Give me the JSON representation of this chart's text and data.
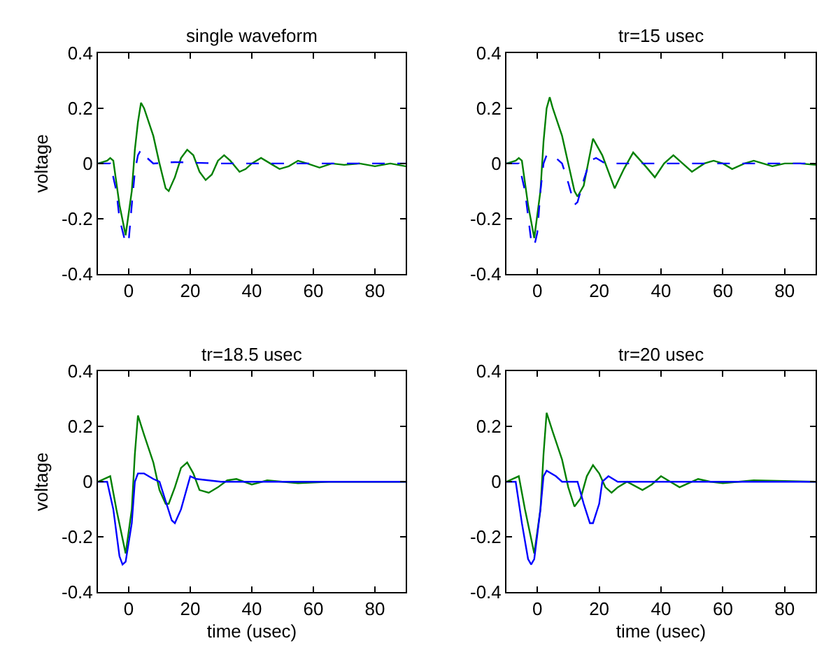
{
  "chart_data": [
    {
      "type": "line",
      "title": "single waveform",
      "ylabel": "voltage",
      "xlim": [
        -10,
        90
      ],
      "xticks": [
        0,
        20,
        40,
        60,
        80
      ],
      "ylim": [
        -0.4,
        0.4
      ],
      "yticks": [
        -0.4,
        -0.2,
        0,
        0.2,
        0.4
      ],
      "series": [
        {
          "color": "#008000",
          "line_style": "solid",
          "x": [
            -10,
            -7,
            -6,
            -5,
            -3,
            -1,
            1,
            2,
            3,
            4,
            5,
            8,
            10,
            12,
            13,
            15,
            17,
            19,
            21,
            23,
            25,
            27,
            29,
            31,
            33,
            36,
            38,
            40,
            43,
            46,
            49,
            52,
            55,
            58,
            62,
            66,
            70,
            75,
            80,
            85,
            90
          ],
          "values": [
            0,
            0.01,
            0.02,
            0.01,
            -0.15,
            -0.26,
            -0.1,
            0.05,
            0.15,
            0.22,
            0.2,
            0.1,
            0,
            -0.09,
            -0.1,
            -0.05,
            0.02,
            0.05,
            0.03,
            -0.03,
            -0.06,
            -0.04,
            0.01,
            0.03,
            0.01,
            -0.03,
            -0.02,
            0,
            0.02,
            0,
            -0.02,
            -0.01,
            0.01,
            0,
            -0.015,
            0,
            -0.005,
            0,
            -0.01,
            0,
            -0.01
          ]
        },
        {
          "color": "#0000ff",
          "line_style": "dashed",
          "x": [
            -10,
            -6,
            -4,
            -3,
            -1,
            0,
            1,
            2,
            3,
            4,
            6,
            8,
            15,
            30,
            50,
            70,
            90
          ],
          "values": [
            0,
            0,
            -0.1,
            -0.2,
            -0.29,
            -0.28,
            -0.15,
            -0.03,
            0.03,
            0.05,
            0.02,
            0,
            0.005,
            0,
            0,
            0,
            0
          ]
        }
      ]
    },
    {
      "type": "line",
      "title": "tr=15 usec",
      "xlim": [
        -10,
        90
      ],
      "xticks": [
        0,
        20,
        40,
        60,
        80
      ],
      "ylim": [
        -0.4,
        0.4
      ],
      "yticks": [
        -0.4,
        -0.2,
        0,
        0.2,
        0.4
      ],
      "series": [
        {
          "color": "#008000",
          "line_style": "solid",
          "x": [
            -10,
            -7,
            -6,
            -5,
            -3,
            -1,
            1,
            2,
            3,
            4,
            5,
            8,
            10,
            12,
            13,
            15,
            18,
            21,
            25,
            28,
            31,
            35,
            38,
            41,
            44,
            47,
            50,
            54,
            57,
            60,
            63,
            67,
            70,
            73,
            76,
            80,
            85,
            90
          ],
          "values": [
            0,
            0.01,
            0.02,
            0.01,
            -0.15,
            -0.27,
            -0.1,
            0.08,
            0.2,
            0.24,
            0.2,
            0.1,
            0,
            -0.1,
            -0.12,
            -0.08,
            0.09,
            0.03,
            -0.09,
            -0.02,
            0.04,
            -0.01,
            -0.05,
            0,
            0.03,
            0,
            -0.03,
            0,
            0.01,
            0,
            -0.02,
            0,
            0.01,
            0,
            -0.01,
            0,
            0,
            -0.005
          ]
        },
        {
          "color": "#0000ff",
          "line_style": "dashed",
          "x": [
            -10,
            -6,
            -4,
            -2,
            -1,
            0,
            1,
            2,
            3,
            5,
            8,
            10,
            12,
            13,
            15,
            17,
            19,
            22,
            40,
            60,
            90
          ],
          "values": [
            0,
            0,
            -0.1,
            -0.28,
            -0.3,
            -0.25,
            -0.1,
            0,
            0.03,
            0.03,
            0,
            -0.07,
            -0.15,
            -0.14,
            -0.06,
            0.01,
            0.02,
            0,
            0,
            0,
            0
          ]
        }
      ]
    },
    {
      "type": "line",
      "title": "tr=18.5 usec",
      "xlabel": "time (usec)",
      "ylabel": "voltage",
      "xlim": [
        -10,
        90
      ],
      "xticks": [
        0,
        20,
        40,
        60,
        80
      ],
      "ylim": [
        -0.4,
        0.4
      ],
      "yticks": [
        -0.4,
        -0.2,
        0,
        0.2,
        0.4
      ],
      "series": [
        {
          "color": "#008000",
          "line_style": "solid",
          "x": [
            -10,
            -6,
            -4,
            -1,
            1,
            2,
            3,
            5,
            8,
            10,
            12,
            13,
            15,
            17,
            19,
            21,
            23,
            26,
            29,
            32,
            35,
            40,
            45,
            55,
            65,
            90
          ],
          "values": [
            0,
            0.02,
            -0.1,
            -0.26,
            -0.1,
            0.1,
            0.24,
            0.17,
            0.07,
            -0.03,
            -0.08,
            -0.08,
            -0.02,
            0.05,
            0.07,
            0.03,
            -0.03,
            -0.04,
            -0.02,
            0.005,
            0.01,
            -0.01,
            0.005,
            -0.005,
            0,
            0
          ]
        },
        {
          "color": "#0000ff",
          "line_style": "solid",
          "x": [
            -10,
            -7,
            -5,
            -3,
            -2,
            -1,
            1,
            2,
            3,
            5,
            8,
            10,
            12,
            14,
            15,
            17,
            19,
            20,
            22,
            30,
            90
          ],
          "values": [
            0,
            0,
            -0.1,
            -0.27,
            -0.3,
            -0.29,
            -0.15,
            0,
            0.03,
            0.03,
            0.01,
            0,
            -0.07,
            -0.14,
            -0.15,
            -0.1,
            -0.02,
            0.02,
            0.01,
            0,
            0
          ]
        }
      ]
    },
    {
      "type": "line",
      "title": "tr=20 usec",
      "xlabel": "time (usec)",
      "xlim": [
        -10,
        90
      ],
      "xticks": [
        0,
        20,
        40,
        60,
        80
      ],
      "ylim": [
        -0.4,
        0.4
      ],
      "yticks": [
        -0.4,
        -0.2,
        0,
        0.2,
        0.4
      ],
      "series": [
        {
          "color": "#008000",
          "line_style": "solid",
          "x": [
            -10,
            -6,
            -4,
            -1,
            1,
            2,
            3,
            5,
            8,
            10,
            12,
            14,
            16,
            18,
            20,
            22,
            24,
            26,
            29,
            34,
            37,
            40,
            43,
            46,
            50,
            52,
            56,
            60,
            70,
            90
          ],
          "values": [
            0,
            0.02,
            -0.1,
            -0.26,
            -0.1,
            0.1,
            0.25,
            0.18,
            0.08,
            -0.02,
            -0.09,
            -0.06,
            0.02,
            0.06,
            0.03,
            -0.02,
            -0.04,
            -0.02,
            0,
            -0.03,
            -0.01,
            0.02,
            0,
            -0.02,
            0,
            0.01,
            0,
            -0.005,
            0.005,
            0
          ]
        },
        {
          "color": "#0000ff",
          "line_style": "solid",
          "x": [
            -10,
            -7,
            -5,
            -3,
            -2,
            -1,
            1,
            2,
            3,
            6,
            8,
            13,
            15,
            17,
            18,
            20,
            21,
            23,
            26,
            90
          ],
          "values": [
            0,
            0,
            -0.15,
            -0.28,
            -0.3,
            -0.28,
            -0.1,
            0.02,
            0.04,
            0.02,
            0,
            0,
            -0.08,
            -0.15,
            -0.15,
            -0.08,
            0,
            0.02,
            0,
            0
          ]
        }
      ]
    }
  ]
}
